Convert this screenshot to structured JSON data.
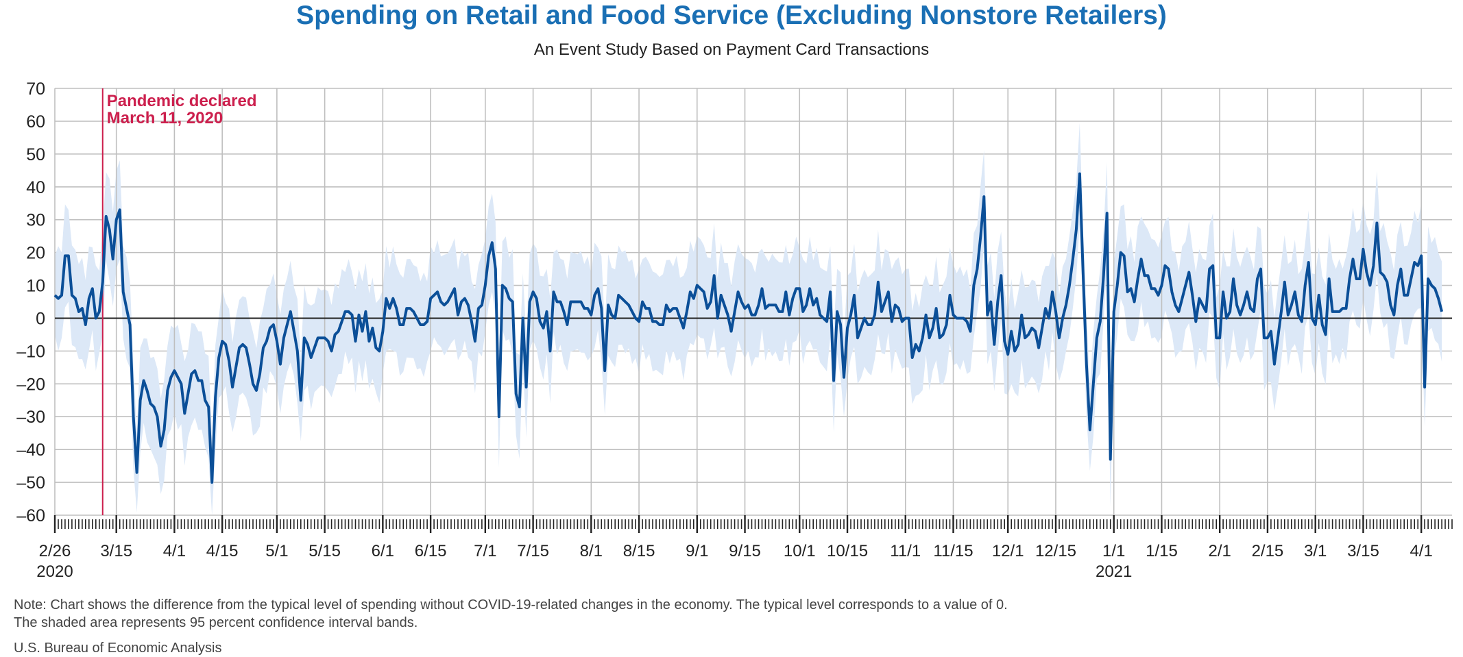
{
  "title": "Spending on Retail and Food Service (Excluding Nonstore Retailers)",
  "subtitle": "An Event Study Based on Payment Card Transactions",
  "note_line_1": "Note: Chart shows the difference from the typical level of spending without COVID-19-related changes in the economy. The typical level corresponds to a value of 0.",
  "note_line_2": "The shaded area represents 95 percent confidence interval bands.",
  "source": "U.S. Bureau of Economic Analysis",
  "colors": {
    "title": "#1a6fb4",
    "line": "#0b4f98",
    "band": "#dce8f7",
    "annotation": "#cc1f4d",
    "grid": "#bfbfbf",
    "zero_line": "#222222"
  },
  "chart_data": {
    "type": "line",
    "title": "Spending on Retail and Food Service (Excluding Nonstore Retailers)",
    "subtitle": "An Event Study Based on Payment Card Transactions",
    "xlabel": "",
    "ylabel": "",
    "ylim": [
      -60,
      70
    ],
    "yticks": [
      70,
      60,
      50,
      40,
      30,
      20,
      10,
      0,
      -10,
      -20,
      -30,
      -40,
      -50,
      -60
    ],
    "xlim": [
      "2020-02-26",
      "2021-04-10"
    ],
    "grid": true,
    "x_ticks": [
      {
        "date": "2020-02-26",
        "label": "2/26",
        "sublabel": "2020"
      },
      {
        "date": "2020-03-15",
        "label": "3/15"
      },
      {
        "date": "2020-04-01",
        "label": "4/1"
      },
      {
        "date": "2020-04-15",
        "label": "4/15"
      },
      {
        "date": "2020-05-01",
        "label": "5/1"
      },
      {
        "date": "2020-05-15",
        "label": "5/15"
      },
      {
        "date": "2020-06-01",
        "label": "6/1"
      },
      {
        "date": "2020-06-15",
        "label": "6/15"
      },
      {
        "date": "2020-07-01",
        "label": "7/1"
      },
      {
        "date": "2020-07-15",
        "label": "7/15"
      },
      {
        "date": "2020-08-01",
        "label": "8/1"
      },
      {
        "date": "2020-08-15",
        "label": "8/15"
      },
      {
        "date": "2020-09-01",
        "label": "9/1"
      },
      {
        "date": "2020-09-15",
        "label": "9/15"
      },
      {
        "date": "2020-10-01",
        "label": "10/1"
      },
      {
        "date": "2020-10-15",
        "label": "10/15"
      },
      {
        "date": "2020-11-01",
        "label": "11/1"
      },
      {
        "date": "2020-11-15",
        "label": "11/15"
      },
      {
        "date": "2020-12-01",
        "label": "12/1"
      },
      {
        "date": "2020-12-15",
        "label": "12/15"
      },
      {
        "date": "2021-01-01",
        "label": "1/1",
        "sublabel": "2021"
      },
      {
        "date": "2021-01-15",
        "label": "1/15"
      },
      {
        "date": "2021-02-01",
        "label": "2/1"
      },
      {
        "date": "2021-02-15",
        "label": "2/15"
      },
      {
        "date": "2021-03-01",
        "label": "3/1"
      },
      {
        "date": "2021-03-15",
        "label": "3/15"
      },
      {
        "date": "2021-04-01",
        "label": "4/1"
      }
    ],
    "annotation": {
      "date": "2020-03-11",
      "line1": "Pandemic declared",
      "line2": "March 11, 2020"
    },
    "band_halfwidth": 16,
    "series": [
      {
        "start_date": "2020-02-26",
        "values": [
          7,
          6,
          7,
          19,
          19,
          7,
          6,
          2,
          3,
          -2,
          6,
          9,
          0,
          2,
          11,
          31,
          27,
          18,
          30,
          33,
          8,
          3,
          -2,
          -30,
          -47,
          -25,
          -19,
          -22,
          -26,
          -27,
          -30,
          -39,
          -34,
          -22,
          -18,
          -16,
          -18,
          -20,
          -29,
          -23,
          -17,
          -16,
          -19,
          -19,
          -25,
          -27,
          -50,
          -24,
          -12,
          -7,
          -8,
          -13,
          -21,
          -15,
          -9,
          -8,
          -9,
          -14,
          -20,
          -22,
          -17,
          -9,
          -7,
          -3,
          -2,
          -7,
          -14,
          -6,
          -2,
          2,
          -4,
          -10,
          -25,
          -6,
          -8,
          -12,
          -9,
          -6,
          -6,
          -6,
          -7,
          -10,
          -5,
          -4,
          -1,
          2,
          2,
          1,
          -7,
          1,
          -4,
          2,
          -7,
          -3,
          -9,
          -10,
          -4,
          6,
          3,
          6,
          3,
          -2,
          -2,
          3,
          3,
          2,
          0,
          -2,
          -2,
          -1,
          6,
          7,
          8,
          5,
          4,
          5,
          7,
          9,
          1,
          5,
          6,
          4,
          -1,
          -7,
          3,
          4,
          10,
          19,
          23,
          15,
          -30,
          10,
          9,
          6,
          5,
          -23,
          -27,
          0,
          -21,
          5,
          8,
          6,
          -1,
          -3,
          2,
          -10,
          8,
          5,
          5,
          2,
          -2,
          5,
          5,
          5,
          5,
          3,
          3,
          1,
          7,
          9,
          3,
          -16,
          4,
          1,
          0,
          7,
          6,
          5,
          4,
          2,
          0,
          -1,
          5,
          3,
          3,
          -1,
          -1,
          -2,
          -2,
          4,
          2,
          3,
          3,
          0,
          -3,
          2,
          8,
          6,
          10,
          9,
          8,
          3,
          5,
          13,
          0,
          7,
          4,
          1,
          -4,
          2,
          8,
          5,
          3,
          4,
          1,
          1,
          4,
          9,
          3,
          4,
          4,
          4,
          2,
          2,
          8,
          1,
          6,
          9,
          9,
          2,
          4,
          9,
          4,
          6,
          1,
          0,
          -1,
          8,
          -19,
          2,
          -2,
          -18,
          -3,
          1,
          7,
          -6,
          -3,
          0,
          -2,
          -2,
          1,
          11,
          2,
          5,
          8,
          -1,
          4,
          3,
          -1,
          0,
          0,
          -12,
          -8,
          -10,
          -6,
          1,
          -6,
          -3,
          3,
          -6,
          -5,
          -2,
          7,
          1,
          0,
          0,
          0,
          -1,
          -4,
          10,
          15,
          25,
          37,
          1,
          5,
          -8,
          5,
          13,
          -7,
          -11,
          -4,
          -10,
          -8,
          1,
          -6,
          -5,
          -3,
          -4,
          -9,
          -3,
          3,
          0,
          8,
          2,
          -6,
          0,
          4,
          10,
          18,
          27,
          44,
          14,
          -14,
          -34,
          -20,
          -6,
          -1,
          13,
          32,
          -43,
          2,
          10,
          20,
          19,
          8,
          9,
          5,
          12,
          18,
          13,
          13,
          9,
          9,
          7,
          10,
          16,
          15,
          8,
          4,
          2,
          6,
          10,
          14,
          7,
          -1,
          6,
          4,
          2,
          15,
          16,
          -6,
          -6,
          8,
          0,
          2,
          12,
          4,
          1,
          4,
          8,
          3,
          2,
          12,
          15,
          -6,
          -6,
          -4,
          -14,
          -6,
          2,
          11,
          1,
          4,
          8,
          1,
          -1,
          10,
          17,
          0,
          -2,
          7,
          -2,
          -5,
          12,
          2,
          2,
          2,
          3,
          3,
          12,
          18,
          12,
          12,
          21,
          14,
          10,
          16,
          29,
          14,
          13,
          11,
          4,
          1,
          10,
          15,
          7,
          7,
          12,
          17,
          16,
          19,
          -21,
          12,
          10,
          9,
          6,
          2
        ]
      }
    ]
  }
}
